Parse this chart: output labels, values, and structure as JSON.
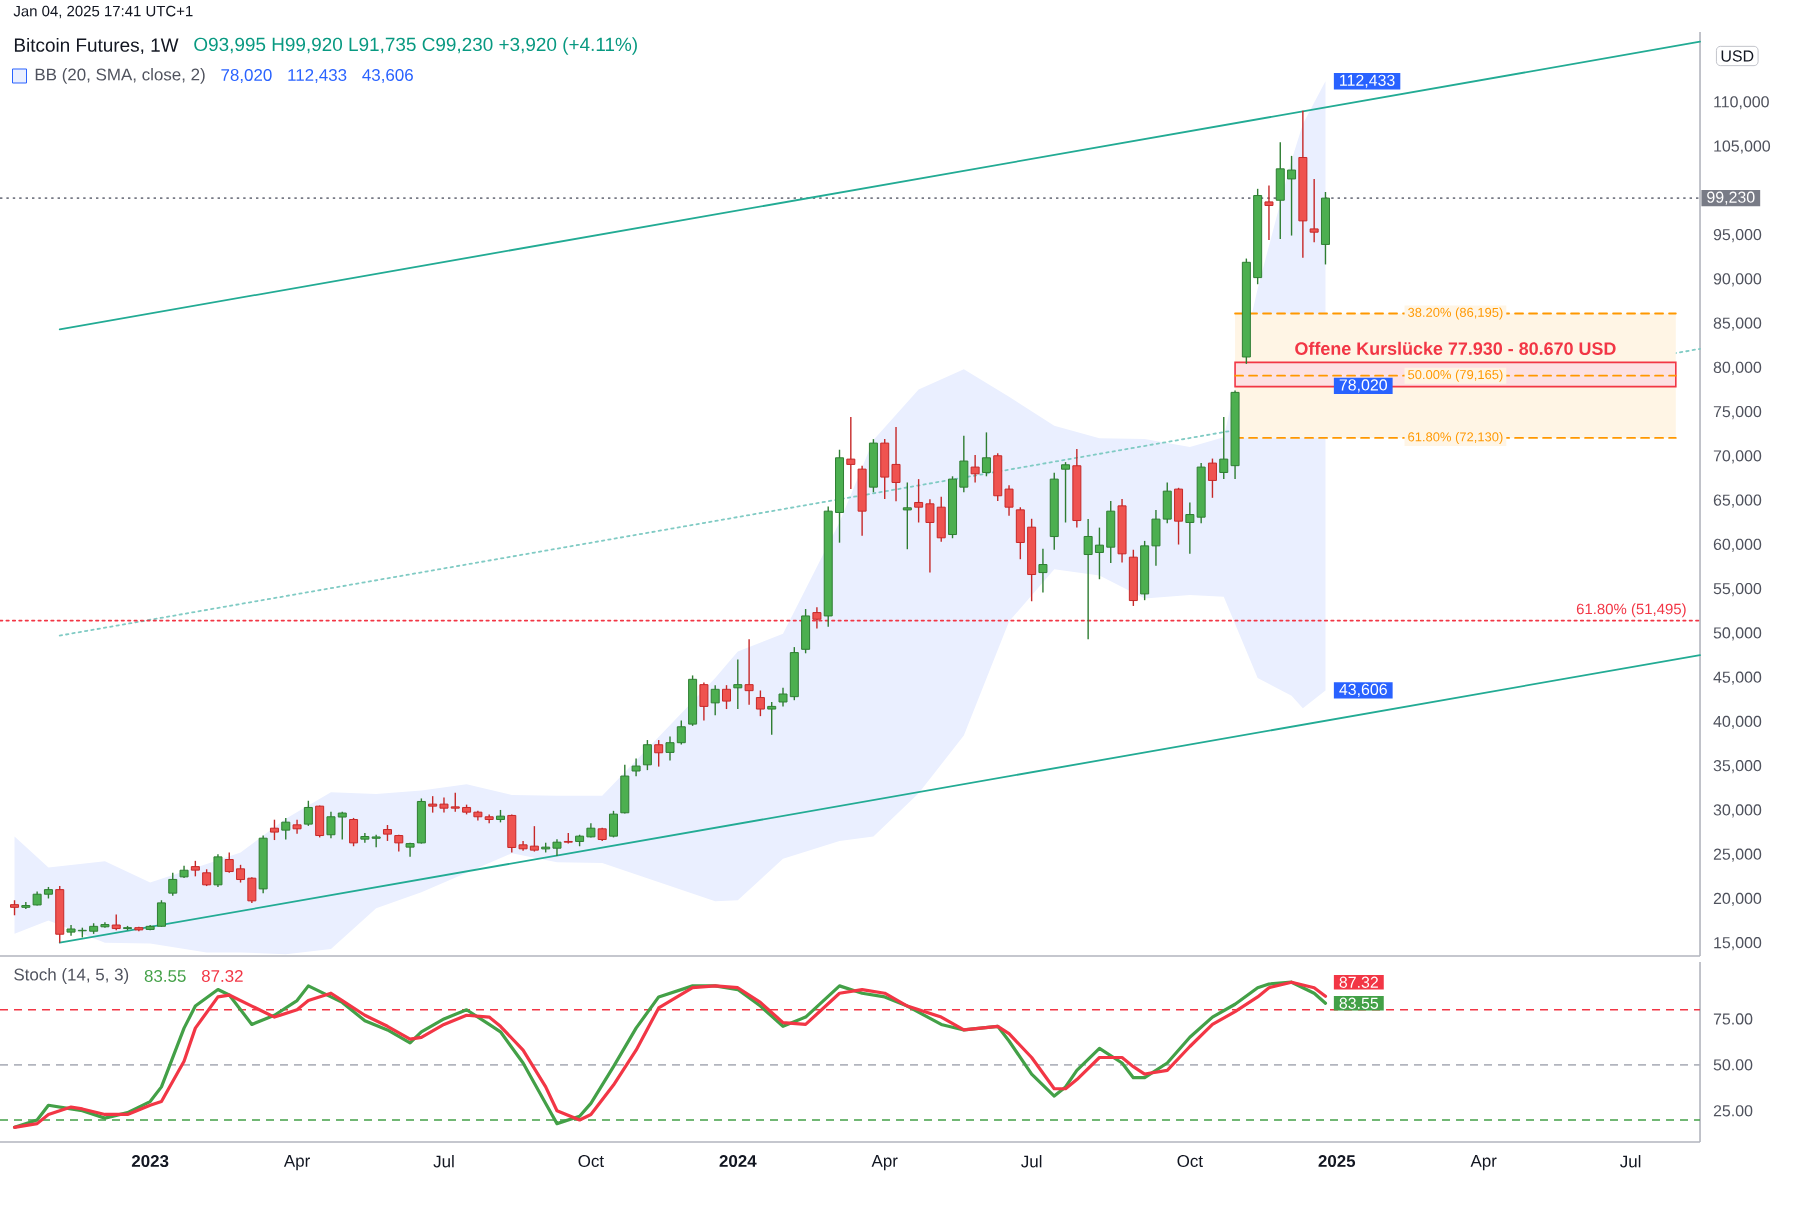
{
  "chart_data": [
    {
      "type": "candlestick",
      "title": "Bitcoin Futures, 1W",
      "subtitle": "O93,995 H99,920 L91,735 C99,230 +3,920 (+4.11%)",
      "ylabel": "USD",
      "x": [
        "2022-10-10",
        "2022-10-17",
        "2022-10-24",
        "2022-10-31",
        "2022-11-07",
        "2022-11-14",
        "2022-11-21",
        "2022-11-28",
        "2022-12-05",
        "2022-12-12",
        "2022-12-19",
        "2022-12-26",
        "2023-01-02",
        "2023-01-09",
        "2023-01-16",
        "2023-01-23",
        "2023-01-30",
        "2023-02-06",
        "2023-02-13",
        "2023-02-20",
        "2023-02-27",
        "2023-03-06",
        "2023-03-13",
        "2023-03-20",
        "2023-03-27",
        "2023-04-03",
        "2023-04-10",
        "2023-04-17",
        "2023-04-24",
        "2023-05-01",
        "2023-05-08",
        "2023-05-15",
        "2023-05-22",
        "2023-05-29",
        "2023-06-05",
        "2023-06-12",
        "2023-06-19",
        "2023-06-26",
        "2023-07-03",
        "2023-07-10",
        "2023-07-17",
        "2023-07-24",
        "2023-07-31",
        "2023-08-07",
        "2023-08-14",
        "2023-08-21",
        "2023-08-28",
        "2023-09-04",
        "2023-09-11",
        "2023-09-18",
        "2023-09-25",
        "2023-10-02",
        "2023-10-09",
        "2023-10-16",
        "2023-10-23",
        "2023-10-30",
        "2023-11-06",
        "2023-11-13",
        "2023-11-20",
        "2023-11-27",
        "2023-12-04",
        "2023-12-11",
        "2023-12-18",
        "2023-12-25",
        "2024-01-01",
        "2024-01-08",
        "2024-01-15",
        "2024-01-22",
        "2024-01-29",
        "2024-02-05",
        "2024-02-12",
        "2024-02-19",
        "2024-02-26",
        "2024-03-04",
        "2024-03-11",
        "2024-03-18",
        "2024-03-25",
        "2024-04-01",
        "2024-04-08",
        "2024-04-15",
        "2024-04-22",
        "2024-04-29",
        "2024-05-06",
        "2024-05-13",
        "2024-05-20",
        "2024-05-27",
        "2024-06-03",
        "2024-06-10",
        "2024-06-17",
        "2024-06-24",
        "2024-07-01",
        "2024-07-08",
        "2024-07-15",
        "2024-07-22",
        "2024-07-29",
        "2024-08-05",
        "2024-08-12",
        "2024-08-19",
        "2024-08-26",
        "2024-09-02",
        "2024-09-09",
        "2024-09-16",
        "2024-09-23",
        "2024-09-30",
        "2024-10-07",
        "2024-10-14",
        "2024-10-21",
        "2024-10-28",
        "2024-11-04",
        "2024-11-11",
        "2024-11-18",
        "2024-11-25",
        "2024-12-02",
        "2024-12-09",
        "2024-12-16",
        "2024-12-23",
        "2024-12-30"
      ],
      "ohlc": [
        [
          19400,
          19900,
          18200,
          19100
        ],
        [
          19100,
          19700,
          18900,
          19300
        ],
        [
          19370,
          20900,
          19300,
          20580
        ],
        [
          20580,
          21400,
          20100,
          21100
        ],
        [
          21100,
          21500,
          15100,
          16060
        ],
        [
          16300,
          17100,
          15900,
          16650
        ],
        [
          16450,
          16800,
          15700,
          16500
        ],
        [
          16400,
          17300,
          16100,
          16950
        ],
        [
          16900,
          17400,
          16800,
          17150
        ],
        [
          17100,
          18300,
          16500,
          16700
        ],
        [
          16700,
          17000,
          16500,
          16800
        ],
        [
          16800,
          16900,
          16400,
          16550
        ],
        [
          16600,
          17100,
          16500,
          16950
        ],
        [
          16960,
          19900,
          16900,
          19600
        ],
        [
          20700,
          23000,
          20400,
          22250
        ],
        [
          22540,
          23800,
          22400,
          23290
        ],
        [
          23700,
          24350,
          22600,
          23300
        ],
        [
          23000,
          23400,
          21500,
          21640
        ],
        [
          21640,
          25100,
          21400,
          24800
        ],
        [
          24500,
          25300,
          23000,
          23140
        ],
        [
          23450,
          23900,
          21900,
          22240
        ],
        [
          22390,
          22500,
          19600,
          19830
        ],
        [
          21180,
          27200,
          20700,
          26910
        ],
        [
          28040,
          29000,
          26700,
          27600
        ],
        [
          27820,
          29200,
          26760,
          28720
        ],
        [
          28420,
          29000,
          27400,
          27970
        ],
        [
          28500,
          31140,
          28300,
          30380
        ],
        [
          30530,
          30600,
          27000,
          27210
        ],
        [
          27300,
          29900,
          26900,
          29330
        ],
        [
          29300,
          29900,
          26760,
          29750
        ],
        [
          29020,
          29200,
          26000,
          26380
        ],
        [
          26800,
          27500,
          26400,
          27100
        ],
        [
          26900,
          27300,
          25900,
          27050
        ],
        [
          27890,
          28400,
          26600,
          27370
        ],
        [
          27210,
          27300,
          25400,
          26380
        ],
        [
          25900,
          26400,
          24800,
          26300
        ],
        [
          26380,
          31400,
          26300,
          31060
        ],
        [
          30760,
          31660,
          29800,
          30530
        ],
        [
          30760,
          31500,
          29800,
          30300
        ],
        [
          30450,
          32040,
          29900,
          30300
        ],
        [
          30380,
          30700,
          29600,
          29850
        ],
        [
          29850,
          30000,
          28900,
          29330
        ],
        [
          29330,
          29600,
          28600,
          29020
        ],
        [
          29020,
          30100,
          28700,
          29400
        ],
        [
          29480,
          29600,
          25300,
          25860
        ],
        [
          26160,
          26600,
          25500,
          25710
        ],
        [
          26010,
          28270,
          25400,
          25560
        ],
        [
          25700,
          26400,
          25300,
          25900
        ],
        [
          25780,
          26800,
          24900,
          26460
        ],
        [
          26540,
          27500,
          26300,
          26460
        ],
        [
          26540,
          27300,
          26000,
          27140
        ],
        [
          27060,
          28600,
          27000,
          28040
        ],
        [
          27970,
          28100,
          26600,
          26760
        ],
        [
          27140,
          30000,
          27000,
          29630
        ],
        [
          29780,
          35200,
          29700,
          33930
        ],
        [
          34500,
          35900,
          33900,
          35060
        ],
        [
          35200,
          38000,
          34600,
          37470
        ],
        [
          37470,
          38000,
          35000,
          36560
        ],
        [
          36600,
          38400,
          35700,
          37700
        ],
        [
          37700,
          40200,
          37500,
          39500
        ],
        [
          39800,
          45300,
          39600,
          44860
        ],
        [
          44260,
          44500,
          40200,
          41800
        ],
        [
          42200,
          44200,
          40800,
          43730
        ],
        [
          43730,
          44200,
          41500,
          42400
        ],
        [
          43900,
          47100,
          41500,
          44260
        ],
        [
          44260,
          49380,
          42000,
          43580
        ],
        [
          42800,
          43600,
          40700,
          41500
        ],
        [
          41500,
          42300,
          38600,
          41800
        ],
        [
          42300,
          43900,
          41800,
          43200
        ],
        [
          42900,
          48500,
          42500,
          47880
        ],
        [
          48250,
          52800,
          47800,
          52020
        ],
        [
          52400,
          53000,
          50600,
          51650
        ],
        [
          52020,
          64400,
          50800,
          63860
        ],
        [
          63710,
          70800,
          60300,
          69890
        ],
        [
          69740,
          74490,
          66350,
          69140
        ],
        [
          68610,
          69000,
          61070,
          63860
        ],
        [
          66570,
          72000,
          66000,
          71550
        ],
        [
          71550,
          72000,
          65220,
          67710
        ],
        [
          69140,
          73360,
          64990,
          67100
        ],
        [
          64000,
          67100,
          59560,
          64240
        ],
        [
          64840,
          67480,
          62580,
          64310
        ],
        [
          64690,
          65200,
          56920,
          62580
        ],
        [
          64310,
          65500,
          60400,
          60850
        ],
        [
          61220,
          67800,
          60800,
          67480
        ],
        [
          66570,
          72380,
          66000,
          69520
        ],
        [
          68840,
          70200,
          67100,
          68080
        ],
        [
          68230,
          72760,
          67800,
          69890
        ],
        [
          70120,
          70400,
          65000,
          65600
        ],
        [
          66350,
          66800,
          63330,
          64310
        ],
        [
          64010,
          64300,
          58430,
          60320
        ],
        [
          62050,
          63000,
          53680,
          56700
        ],
        [
          56920,
          59600,
          54660,
          57830
        ],
        [
          60990,
          68200,
          59500,
          67480
        ],
        [
          68600,
          69400,
          62580,
          69100
        ],
        [
          68990,
          70870,
          62000,
          62800
        ],
        [
          58960,
          62960,
          49380,
          61000
        ],
        [
          59190,
          62000,
          56170,
          60020
        ],
        [
          59790,
          65000,
          58000,
          63860
        ],
        [
          64460,
          65220,
          58060,
          59040
        ],
        [
          58660,
          59500,
          53150,
          53760
        ],
        [
          54510,
          60500,
          53800,
          59940
        ],
        [
          59940,
          64000,
          57680,
          62960
        ],
        [
          62960,
          67100,
          62500,
          66120
        ],
        [
          66350,
          66500,
          60090,
          62730
        ],
        [
          62580,
          64840,
          59040,
          63480
        ],
        [
          63180,
          69300,
          62500,
          68840
        ],
        [
          69290,
          69800,
          65370,
          67330
        ],
        [
          68230,
          74490,
          67500,
          69740
        ],
        [
          69000,
          77500,
          67480,
          77280
        ],
        [
          81280,
          92400,
          80500,
          91980
        ],
        [
          90250,
          100280,
          89500,
          99520
        ],
        [
          98800,
          100650,
          94500,
          98400
        ],
        [
          98990,
          105550,
          94600,
          102540
        ],
        [
          101400,
          104000,
          95000,
          102400
        ],
        [
          103820,
          109100,
          92500,
          96660
        ],
        [
          95750,
          101400,
          94250,
          95380
        ],
        [
          93995,
          99920,
          91735,
          99230
        ]
      ],
      "series": [
        {
          "type": "line",
          "name": "BB (20, SMA, close, 2)",
          "color": "#2962ff",
          "x": [
            "2022-10-10",
            "2022-10-31",
            "2022-12-05",
            "2023-01-02",
            "2023-02-06",
            "2023-02-27",
            "2023-03-27",
            "2023-04-24",
            "2023-05-22",
            "2023-06-19",
            "2023-07-17",
            "2023-08-14",
            "2023-09-11",
            "2023-10-09",
            "2023-12-18",
            "2024-01-01",
            "2024-01-29",
            "2024-03-04",
            "2024-03-25",
            "2024-04-22",
            "2024-05-20",
            "2024-06-17",
            "2024-07-15",
            "2024-08-12",
            "2024-09-09",
            "2024-10-07",
            "2024-10-28",
            "2024-11-18",
            "2024-12-09",
            "2024-12-16",
            "2024-12-30"
          ],
          "values": [
            null,
            null,
            null,
            null,
            null,
            null,
            null,
            null,
            null,
            null,
            null,
            null,
            null,
            null,
            null,
            null,
            null,
            null,
            null,
            null,
            null,
            null,
            null,
            null,
            null,
            null,
            null,
            null,
            null,
            null,
            null
          ],
          "lower": [
            16100,
            17600,
            15100,
            15000,
            14000,
            14000,
            13800,
            14400,
            19000,
            20800,
            23000,
            25200,
            24200,
            24100,
            19800,
            19900,
            24600,
            26600,
            27100,
            32000,
            38500,
            51400,
            57300,
            56600,
            54000,
            54400,
            54200,
            45000,
            43000,
            41600,
            43606
          ],
          "upper": [
            27100,
            23600,
            24300,
            21900,
            24000,
            25300,
            29100,
            32100,
            31900,
            32300,
            33000,
            31800,
            31700,
            31700,
            45000,
            48000,
            50000,
            62600,
            71900,
            77600,
            79900,
            76800,
            73500,
            72100,
            72000,
            71100,
            72200,
            89000,
            103500,
            107600,
            112433
          ]
        },
        {
          "type": "line",
          "color": "#22ab94",
          "x": [
            "2022-11-07",
            "2025-08-19"
          ],
          "values": [
            84400,
            116900
          ]
        },
        {
          "type": "line",
          "color": "#22ab94",
          "x": [
            "2022-11-07",
            "2025-08-19"
          ],
          "values": [
            15100,
            47600
          ]
        },
        {
          "type": "line",
          "color": "#80cbc4",
          "line_style": "dotted",
          "x": [
            "2022-11-07",
            "2025-08-19"
          ],
          "values": [
            49800,
            82200
          ]
        },
        {
          "type": "line",
          "name": "38.20% (86,195)",
          "color": "#ff9800",
          "line_style": "dashed",
          "x": [
            "2024-11-04",
            "2025-08-04"
          ],
          "values": [
            86195,
            86195
          ],
          "lower": [
            72130,
            72130
          ],
          "upper": [
            86195,
            86195
          ]
        },
        {
          "type": "line",
          "name": "Offene Kurslücke 77.930 - 80.670 USD",
          "color": "#f23645",
          "line_style": "solid",
          "x": [
            "2024-11-04",
            "2025-08-04"
          ],
          "values": [
            null,
            null
          ],
          "lower": [
            77930,
            77930
          ],
          "upper": [
            80670,
            80670
          ]
        },
        {
          "type": "line",
          "name": "50.00% (79,165)",
          "color": "#ff9800",
          "line_style": "dashed",
          "x": [
            "2024-11-04",
            "2025-08-04"
          ],
          "values": [
            79165,
            79165
          ]
        },
        {
          "type": "line",
          "name": "61.80% (72,130)",
          "color": "#ff9800",
          "line_style": "dashed",
          "x": [
            "2024-11-04",
            "2025-08-04"
          ],
          "values": [
            72130,
            72130
          ]
        },
        {
          "type": "line",
          "name": "61.80% (51,495)",
          "color": "#f23645",
          "line_style": "dotted",
          "x": [
            "2022-10-01",
            "2025-08-19"
          ],
          "values": [
            51495,
            51495
          ]
        }
      ],
      "ref_lines": [
        {
          "axis": "y",
          "value": 99230,
          "label": "99,230",
          "color": "#787b86",
          "line_style": "dotted"
        }
      ],
      "annotations": [
        "Jan 04, 2025 17:41 UTC+1",
        {
          "text": "78,020",
          "x": "2024-12-30",
          "y": 78020
        },
        {
          "text": "112,433",
          "x": "2024-12-30",
          "y": 112433
        },
        {
          "text": "43,606",
          "x": "2024-12-30",
          "y": 43606
        }
      ],
      "legend": "top left",
      "tick_labels": "y",
      "xlim": [
        "2022-10-01",
        "2025-08-19"
      ],
      "ylim": [
        13600,
        118000
      ],
      "yticks": [
        {
          "value": 15000,
          "label": "15,000"
        },
        {
          "value": 20000,
          "label": "20,000"
        },
        {
          "value": 25000,
          "label": "25,000"
        },
        {
          "value": 30000,
          "label": "30,000"
        },
        {
          "value": 35000,
          "label": "35,000"
        },
        {
          "value": 40000,
          "label": "40,000"
        },
        {
          "value": 45000,
          "label": "45,000"
        },
        {
          "value": 50000,
          "label": "50,000"
        },
        {
          "value": 55000,
          "label": "55,000"
        },
        {
          "value": 60000,
          "label": "60,000"
        },
        {
          "value": 65000,
          "label": "65,000"
        },
        {
          "value": 70000,
          "label": "70,000"
        },
        {
          "value": 75000,
          "label": "75,000"
        },
        {
          "value": 80000,
          "label": "80,000"
        },
        {
          "value": 85000,
          "label": "85,000"
        },
        {
          "value": 90000,
          "label": "90,000"
        },
        {
          "value": 95000,
          "label": "95,000"
        },
        {
          "value": 105000,
          "label": "105,000"
        },
        {
          "value": 110000,
          "label": "110,000"
        }
      ]
    },
    {
      "type": "line",
      "title": "Stoch (14, 5, 3)",
      "x": [
        "2022-10-10",
        "2022-10-24",
        "2022-10-31",
        "2022-11-14",
        "2022-11-21",
        "2022-12-05",
        "2022-12-19",
        "2023-01-02",
        "2023-01-09",
        "2023-01-23",
        "2023-01-30",
        "2023-02-13",
        "2023-02-20",
        "2023-03-06",
        "2023-03-20",
        "2023-04-03",
        "2023-04-10",
        "2023-04-24",
        "2023-05-01",
        "2023-05-15",
        "2023-05-29",
        "2023-06-12",
        "2023-06-19",
        "2023-07-03",
        "2023-07-17",
        "2023-07-31",
        "2023-08-07",
        "2023-08-21",
        "2023-09-04",
        "2023-09-11",
        "2023-09-25",
        "2023-10-02",
        "2023-10-16",
        "2023-10-30",
        "2023-11-13",
        "2023-12-04",
        "2023-12-18",
        "2024-01-01",
        "2024-01-15",
        "2024-01-29",
        "2024-02-12",
        "2024-03-04",
        "2024-03-18",
        "2024-04-01",
        "2024-04-15",
        "2024-05-06",
        "2024-05-20",
        "2024-06-10",
        "2024-06-17",
        "2024-07-01",
        "2024-07-15",
        "2024-07-22",
        "2024-07-29",
        "2024-08-12",
        "2024-08-26",
        "2024-09-02",
        "2024-09-09",
        "2024-09-23",
        "2024-10-07",
        "2024-10-21",
        "2024-11-04",
        "2024-11-18",
        "2024-11-25",
        "2024-12-09",
        "2024-12-23",
        "2024-12-30"
      ],
      "series": [
        {
          "color": "#43a047",
          "values": [
            16,
            20,
            28,
            26,
            25,
            21,
            24,
            30,
            38,
            70,
            82,
            91,
            88,
            72,
            77,
            85,
            93,
            87,
            84,
            74,
            69,
            62,
            68,
            75,
            80,
            72,
            68,
            51,
            29,
            18,
            22,
            29,
            49,
            70,
            87,
            93,
            93,
            91,
            82,
            71,
            76,
            93,
            89,
            87,
            82,
            72,
            69,
            71,
            63,
            45,
            33,
            38,
            47,
            59,
            51,
            43,
            43,
            51,
            65,
            76,
            83,
            92,
            94,
            95,
            89,
            83.55
          ],
          "value_labels": [
            null,
            null,
            null,
            null,
            null,
            null,
            null,
            null,
            null,
            null,
            null,
            null,
            null,
            null,
            null,
            null,
            null,
            null,
            null,
            null,
            null,
            null,
            null,
            null,
            null,
            null,
            null,
            null,
            null,
            null,
            null,
            null,
            null,
            null,
            null,
            null,
            null,
            null,
            null,
            null,
            null,
            null,
            null,
            null,
            null,
            null,
            null,
            null,
            null,
            null,
            null,
            null,
            null,
            null,
            null,
            null,
            null,
            null,
            null,
            null,
            null,
            null,
            null,
            null,
            null,
            "83.55"
          ]
        },
        {
          "color": "#f23645",
          "values": [
            16,
            18,
            23,
            27,
            26,
            23,
            23,
            28,
            30,
            52,
            70,
            87,
            88,
            82,
            76,
            80,
            85,
            89,
            85,
            77,
            71,
            64,
            65,
            72,
            77,
            76,
            71,
            58,
            38,
            25,
            20,
            23,
            39,
            58,
            81,
            92,
            93,
            92,
            84,
            73,
            72,
            89,
            91,
            89,
            82,
            76,
            69,
            71,
            67,
            54,
            37,
            37,
            42,
            54,
            54,
            49,
            45,
            47,
            60,
            72,
            79,
            87,
            92,
            95,
            92,
            87.32
          ],
          "value_labels": [
            null,
            null,
            null,
            null,
            null,
            null,
            null,
            null,
            null,
            null,
            null,
            null,
            null,
            null,
            null,
            null,
            null,
            null,
            null,
            null,
            null,
            null,
            null,
            null,
            null,
            null,
            null,
            null,
            null,
            null,
            null,
            null,
            null,
            null,
            null,
            null,
            null,
            null,
            null,
            null,
            null,
            null,
            null,
            null,
            null,
            null,
            null,
            null,
            null,
            null,
            null,
            null,
            null,
            null,
            null,
            null,
            null,
            null,
            null,
            null,
            null,
            null,
            null,
            null,
            null,
            "87.32"
          ]
        }
      ],
      "ref_lines": [
        {
          "axis": "y",
          "value": 80,
          "color": "#f23645",
          "line_style": "dashed"
        },
        {
          "axis": "y",
          "value": 50,
          "color": "#b2b5be",
          "line_style": "dashed"
        },
        {
          "axis": "y",
          "value": 20,
          "color": "#43a047",
          "line_style": "dashed"
        }
      ],
      "xlim": [
        "2022-10-01",
        "2025-08-19"
      ],
      "ylim": [
        8,
        106
      ],
      "xticks": [
        {
          "value": "2023-01-02",
          "label": "2023"
        },
        {
          "value": "2023-04-03",
          "label": "Apr"
        },
        {
          "value": "2023-07-03",
          "label": "Jul"
        },
        {
          "value": "2023-10-02",
          "label": "Oct"
        },
        {
          "value": "2024-01-01",
          "label": "2024"
        },
        {
          "value": "2024-04-01",
          "label": "Apr"
        },
        {
          "value": "2024-07-01",
          "label": "Jul"
        },
        {
          "value": "2024-10-07",
          "label": "Oct"
        },
        {
          "value": "2025-01-06",
          "label": "2025"
        },
        {
          "value": "2025-04-07",
          "label": "Apr"
        },
        {
          "value": "2025-07-07",
          "label": "Jul"
        }
      ],
      "yticks": [
        {
          "value": 25,
          "label": "25.00"
        },
        {
          "value": 50,
          "label": "50.00"
        },
        {
          "value": 75,
          "label": "75.00"
        }
      ]
    }
  ]
}
